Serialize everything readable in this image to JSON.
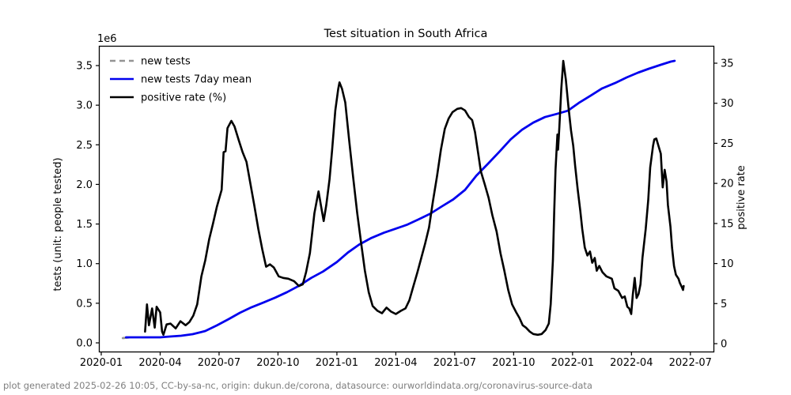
{
  "title": "Test situation in South Africa",
  "offset_label": "1e6",
  "axes": {
    "y_left_label": "tests (unit: people tested)",
    "y_right_label": "positive rate",
    "x_tick_labels": [
      "2020-01",
      "2020-04",
      "2020-07",
      "2020-10",
      "2021-01",
      "2021-04",
      "2021-07",
      "2021-10",
      "2022-01",
      "2022-04",
      "2022-07"
    ],
    "y_left_tick_labels": [
      "0.0",
      "0.5",
      "1.0",
      "1.5",
      "2.0",
      "2.5",
      "3.0",
      "3.5"
    ],
    "y_right_tick_labels": [
      "0",
      "5",
      "10",
      "15",
      "20",
      "25",
      "30",
      "35"
    ]
  },
  "footer": "plot generated 2025-02-26 10:05, CC-by-sa-nc, origin: dukun.de/corona, datasource: ourworldindata.org/coronavirus-source-data",
  "chart_data": {
    "type": "line",
    "title": "Test situation in South Africa",
    "grid": false,
    "legend_position": "upper left",
    "x_axis": {
      "label": "",
      "tick_labels": [
        "2020-01",
        "2020-04",
        "2020-07",
        "2020-10",
        "2021-01",
        "2021-04",
        "2021-07",
        "2021-10",
        "2022-01",
        "2022-04",
        "2022-07"
      ],
      "range": [
        "2019-12-28",
        "2022-08-05"
      ]
    },
    "y_left_axis": {
      "label": "tests (unit: people tested)",
      "unit": "1e6 people",
      "ticks": [
        0.0,
        0.5,
        1.0,
        1.5,
        2.0,
        2.5,
        3.0,
        3.5
      ]
    },
    "y_right_axis": {
      "label": "positive rate",
      "unit": "%",
      "ticks": [
        0,
        5,
        10,
        15,
        20,
        25,
        30,
        35
      ]
    },
    "series": [
      {
        "name": "new tests",
        "axis": "left",
        "unit": "1e6",
        "color": "#949494",
        "style": "dashed",
        "note": "only a short stub visible at series start; elsewhere hidden behind the 7-day mean line",
        "points": [
          [
            "2020-02-04",
            0.06
          ],
          [
            "2020-02-16",
            0.07
          ]
        ]
      },
      {
        "name": "new tests 7day mean",
        "axis": "left",
        "unit": "1e6",
        "color": "#0000ee",
        "style": "solid",
        "points": [
          [
            "2020-02-09",
            0.07
          ],
          [
            "2020-03-08",
            0.07
          ],
          [
            "2020-04-01",
            0.07
          ],
          [
            "2020-04-16",
            0.08
          ],
          [
            "2020-05-03",
            0.09
          ],
          [
            "2020-05-21",
            0.11
          ],
          [
            "2020-06-10",
            0.15
          ],
          [
            "2020-06-28",
            0.22
          ],
          [
            "2020-07-16",
            0.3
          ],
          [
            "2020-08-03",
            0.38
          ],
          [
            "2020-08-21",
            0.45
          ],
          [
            "2020-09-09",
            0.51
          ],
          [
            "2020-09-27",
            0.57
          ],
          [
            "2020-10-15",
            0.64
          ],
          [
            "2020-11-03",
            0.72
          ],
          [
            "2020-11-22",
            0.82
          ],
          [
            "2020-12-10",
            0.9
          ],
          [
            "2021-01-01",
            1.02
          ],
          [
            "2021-01-18",
            1.14
          ],
          [
            "2021-02-05",
            1.24
          ],
          [
            "2021-02-23",
            1.32
          ],
          [
            "2021-03-13",
            1.39
          ],
          [
            "2021-03-31",
            1.44
          ],
          [
            "2021-04-18",
            1.49
          ],
          [
            "2021-05-06",
            1.56
          ],
          [
            "2021-05-24",
            1.63
          ],
          [
            "2021-06-11",
            1.72
          ],
          [
            "2021-06-29",
            1.81
          ],
          [
            "2021-07-17",
            1.93
          ],
          [
            "2021-08-04",
            2.11
          ],
          [
            "2021-08-22",
            2.26
          ],
          [
            "2021-09-09",
            2.41
          ],
          [
            "2021-09-27",
            2.57
          ],
          [
            "2021-10-14",
            2.69
          ],
          [
            "2021-11-01",
            2.78
          ],
          [
            "2021-11-19",
            2.85
          ],
          [
            "2021-12-07",
            2.89
          ],
          [
            "2021-12-24",
            2.93
          ],
          [
            "2022-01-11",
            3.03
          ],
          [
            "2022-01-29",
            3.12
          ],
          [
            "2022-02-16",
            3.21
          ],
          [
            "2022-03-06",
            3.28
          ],
          [
            "2022-03-24",
            3.35
          ],
          [
            "2022-04-11",
            3.41
          ],
          [
            "2022-04-28",
            3.46
          ],
          [
            "2022-05-16",
            3.51
          ],
          [
            "2022-06-01",
            3.55
          ],
          [
            "2022-06-07",
            3.56
          ]
        ]
      },
      {
        "name": "positive rate (%)",
        "axis": "right",
        "unit": "%",
        "color": "#000000",
        "style": "solid",
        "points": [
          [
            "2020-03-08",
            1.5
          ],
          [
            "2020-03-11",
            4.9
          ],
          [
            "2020-03-14",
            2.3
          ],
          [
            "2020-03-19",
            4.4
          ],
          [
            "2020-03-23",
            2.0
          ],
          [
            "2020-03-26",
            4.6
          ],
          [
            "2020-04-01",
            3.9
          ],
          [
            "2020-04-04",
            1.5
          ],
          [
            "2020-04-06",
            1.1
          ],
          [
            "2020-04-11",
            2.4
          ],
          [
            "2020-04-17",
            2.5
          ],
          [
            "2020-04-25",
            1.9
          ],
          [
            "2020-05-02",
            2.8
          ],
          [
            "2020-05-10",
            2.3
          ],
          [
            "2020-05-16",
            2.7
          ],
          [
            "2020-05-22",
            3.5
          ],
          [
            "2020-05-28",
            4.9
          ],
          [
            "2020-06-04",
            8.4
          ],
          [
            "2020-06-10",
            10.4
          ],
          [
            "2020-06-16",
            13.0
          ],
          [
            "2020-06-22",
            15.0
          ],
          [
            "2020-06-28",
            17.1
          ],
          [
            "2020-07-05",
            19.2
          ],
          [
            "2020-07-08",
            23.9
          ],
          [
            "2020-07-11",
            24.0
          ],
          [
            "2020-07-14",
            26.9
          ],
          [
            "2020-07-20",
            27.8
          ],
          [
            "2020-07-25",
            27.1
          ],
          [
            "2020-08-01",
            25.4
          ],
          [
            "2020-08-07",
            23.9
          ],
          [
            "2020-08-13",
            22.7
          ],
          [
            "2020-08-19",
            20.0
          ],
          [
            "2020-08-25",
            17.3
          ],
          [
            "2020-09-01",
            14.3
          ],
          [
            "2020-09-07",
            11.8
          ],
          [
            "2020-09-13",
            9.6
          ],
          [
            "2020-09-19",
            9.9
          ],
          [
            "2020-09-25",
            9.5
          ],
          [
            "2020-10-02",
            8.4
          ],
          [
            "2020-10-09",
            8.2
          ],
          [
            "2020-10-17",
            8.1
          ],
          [
            "2020-10-26",
            7.8
          ],
          [
            "2020-11-03",
            7.2
          ],
          [
            "2020-11-09",
            7.4
          ],
          [
            "2020-11-14",
            8.9
          ],
          [
            "2020-11-20",
            11.3
          ],
          [
            "2020-11-27",
            16.3
          ],
          [
            "2020-12-03",
            19.0
          ],
          [
            "2020-12-07",
            17.1
          ],
          [
            "2020-12-11",
            15.3
          ],
          [
            "2020-12-15",
            17.3
          ],
          [
            "2020-12-20",
            20.5
          ],
          [
            "2020-12-24",
            24.2
          ],
          [
            "2020-12-29",
            29.1
          ],
          [
            "2021-01-03",
            31.8
          ],
          [
            "2021-01-05",
            32.6
          ],
          [
            "2021-01-09",
            31.8
          ],
          [
            "2021-01-14",
            30.1
          ],
          [
            "2021-01-20",
            25.4
          ],
          [
            "2021-01-26",
            20.9
          ],
          [
            "2021-02-02",
            16.3
          ],
          [
            "2021-02-08",
            12.6
          ],
          [
            "2021-02-14",
            9.1
          ],
          [
            "2021-02-20",
            6.4
          ],
          [
            "2021-02-26",
            4.7
          ],
          [
            "2021-03-03",
            4.1
          ],
          [
            "2021-03-10",
            3.8
          ],
          [
            "2021-03-17",
            4.5
          ],
          [
            "2021-03-24",
            4.0
          ],
          [
            "2021-04-01",
            3.7
          ],
          [
            "2021-04-09",
            4.1
          ],
          [
            "2021-04-16",
            4.4
          ],
          [
            "2021-04-22",
            5.4
          ],
          [
            "2021-04-28",
            7.1
          ],
          [
            "2021-05-04",
            8.9
          ],
          [
            "2021-05-10",
            10.7
          ],
          [
            "2021-05-16",
            12.5
          ],
          [
            "2021-05-22",
            14.5
          ],
          [
            "2021-05-28",
            17.7
          ],
          [
            "2021-06-04",
            20.9
          ],
          [
            "2021-06-10",
            24.2
          ],
          [
            "2021-06-16",
            26.8
          ],
          [
            "2021-06-22",
            28.1
          ],
          [
            "2021-06-28",
            28.9
          ],
          [
            "2021-07-05",
            29.3
          ],
          [
            "2021-07-11",
            29.4
          ],
          [
            "2021-07-17",
            29.1
          ],
          [
            "2021-07-23",
            28.3
          ],
          [
            "2021-07-28",
            27.9
          ],
          [
            "2021-08-02",
            26.4
          ],
          [
            "2021-08-07",
            23.7
          ],
          [
            "2021-08-11",
            21.5
          ],
          [
            "2021-08-17",
            19.9
          ],
          [
            "2021-08-23",
            18.2
          ],
          [
            "2021-08-29",
            16.0
          ],
          [
            "2021-09-05",
            14.0
          ],
          [
            "2021-09-11",
            11.3
          ],
          [
            "2021-09-17",
            9.1
          ],
          [
            "2021-09-23",
            6.7
          ],
          [
            "2021-09-29",
            4.9
          ],
          [
            "2021-10-05",
            3.9
          ],
          [
            "2021-10-10",
            3.2
          ],
          [
            "2021-10-15",
            2.3
          ],
          [
            "2021-10-20",
            2.0
          ],
          [
            "2021-10-26",
            1.5
          ],
          [
            "2021-11-01",
            1.2
          ],
          [
            "2021-11-08",
            1.1
          ],
          [
            "2021-11-14",
            1.2
          ],
          [
            "2021-11-20",
            1.7
          ],
          [
            "2021-11-25",
            2.5
          ],
          [
            "2021-11-28",
            4.9
          ],
          [
            "2021-12-01",
            10.4
          ],
          [
            "2021-12-03",
            16.3
          ],
          [
            "2021-12-05",
            21.7
          ],
          [
            "2021-12-08",
            26.1
          ],
          [
            "2021-12-09",
            24.2
          ],
          [
            "2021-12-11",
            27.1
          ],
          [
            "2021-12-14",
            31.8
          ],
          [
            "2021-12-17",
            35.3
          ],
          [
            "2021-12-21",
            33.0
          ],
          [
            "2021-12-25",
            29.6
          ],
          [
            "2021-12-29",
            26.6
          ],
          [
            "2022-01-02",
            24.7
          ],
          [
            "2022-01-05",
            22.2
          ],
          [
            "2022-01-09",
            19.2
          ],
          [
            "2022-01-13",
            16.6
          ],
          [
            "2022-01-16",
            14.3
          ],
          [
            "2022-01-20",
            12.0
          ],
          [
            "2022-01-24",
            11.0
          ],
          [
            "2022-01-28",
            11.5
          ],
          [
            "2022-02-01",
            10.1
          ],
          [
            "2022-02-05",
            10.7
          ],
          [
            "2022-02-08",
            9.1
          ],
          [
            "2022-02-12",
            9.7
          ],
          [
            "2022-02-17",
            8.9
          ],
          [
            "2022-02-23",
            8.4
          ],
          [
            "2022-03-01",
            8.1
          ],
          [
            "2022-03-05",
            6.9
          ],
          [
            "2022-03-11",
            6.6
          ],
          [
            "2022-03-17",
            5.7
          ],
          [
            "2022-03-21",
            5.9
          ],
          [
            "2022-03-25",
            4.6
          ],
          [
            "2022-03-28",
            4.4
          ],
          [
            "2022-03-31",
            3.7
          ],
          [
            "2022-04-03",
            6.1
          ],
          [
            "2022-04-06",
            8.2
          ],
          [
            "2022-04-09",
            5.7
          ],
          [
            "2022-04-12",
            6.2
          ],
          [
            "2022-04-15",
            7.4
          ],
          [
            "2022-04-18",
            10.7
          ],
          [
            "2022-04-23",
            14.3
          ],
          [
            "2022-04-27",
            17.9
          ],
          [
            "2022-04-30",
            22.0
          ],
          [
            "2022-05-04",
            24.7
          ],
          [
            "2022-05-06",
            25.5
          ],
          [
            "2022-05-09",
            25.6
          ],
          [
            "2022-05-12",
            24.8
          ],
          [
            "2022-05-16",
            23.7
          ],
          [
            "2022-05-19",
            19.5
          ],
          [
            "2022-05-22",
            21.7
          ],
          [
            "2022-05-25",
            20.2
          ],
          [
            "2022-05-27",
            17.3
          ],
          [
            "2022-05-31",
            14.6
          ],
          [
            "2022-06-03",
            12.0
          ],
          [
            "2022-06-06",
            9.7
          ],
          [
            "2022-06-09",
            8.6
          ],
          [
            "2022-06-13",
            8.1
          ],
          [
            "2022-06-15",
            7.6
          ],
          [
            "2022-06-18",
            7.1
          ],
          [
            "2022-06-20",
            6.7
          ],
          [
            "2022-06-21",
            7.2
          ]
        ]
      }
    ]
  }
}
